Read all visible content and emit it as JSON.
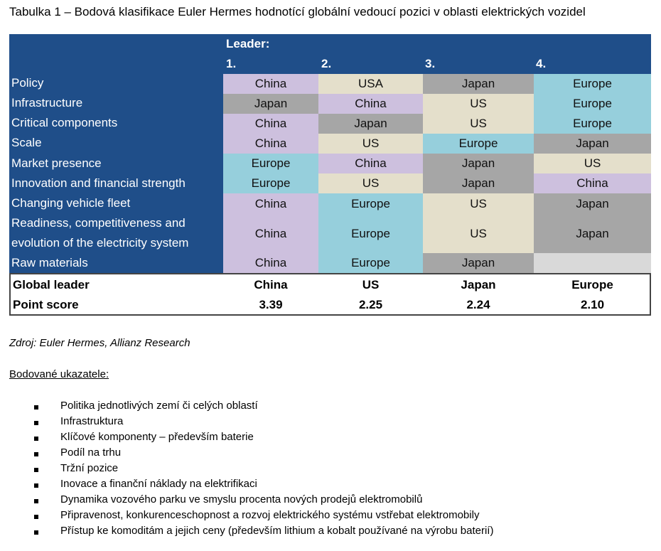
{
  "title": "Tabulka 1 – Bodová klasifikace Euler Hermes hodnotící globální vedoucí pozici v oblasti elektrických vozidel",
  "table": {
    "leader_label": "Leader:",
    "ranks": [
      "1.",
      "2.",
      "3.",
      "4."
    ],
    "colors": {
      "purple": "#cdc0de",
      "beige": "#e4dfcb",
      "gray": "#a6a6a6",
      "teal": "#96cfdc",
      "header_bg": "#1f4e89"
    },
    "rows": [
      {
        "label": "Policy",
        "cells": [
          "China",
          "USA",
          "Japan",
          "Europe"
        ]
      },
      {
        "label": "Infrastructure",
        "cells": [
          "Japan",
          "China",
          "US",
          "Europe"
        ]
      },
      {
        "label": "Critical components",
        "cells": [
          "China",
          "Japan",
          "US",
          "Europe"
        ]
      },
      {
        "label": "Scale",
        "cells": [
          "China",
          "US",
          "Europe",
          "Japan"
        ]
      },
      {
        "label": "Market presence",
        "cells": [
          "Europe",
          "China",
          "Japan",
          "US"
        ]
      },
      {
        "label": "Innovation and financial strength",
        "cells": [
          "Europe",
          "US",
          "Japan",
          "China"
        ]
      },
      {
        "label": "Changing vehicle fleet",
        "cells": [
          "China",
          "Europe",
          "US",
          "Japan"
        ]
      },
      {
        "label": "Readiness, competitiveness and evolution of the electricity system",
        "cells": [
          "China",
          "Europe",
          "US",
          "Japan"
        ]
      },
      {
        "label": "Raw materials",
        "cells": [
          "China",
          "Europe",
          "Japan",
          ""
        ]
      }
    ],
    "summary": {
      "global_leader_label": "Global leader",
      "global_leader": [
        "China",
        "US",
        "Japan",
        "Europe"
      ],
      "point_score_label": "Point score",
      "point_score": [
        "3.39",
        "2.25",
        "2.24",
        "2.10"
      ]
    }
  },
  "source": "Zdroj: Euler Hermes, Allianz Research",
  "indicators_heading": "Bodované ukazatele:",
  "indicators": [
    "Politika jednotlivých zemí či celých oblastí",
    "Infrastruktura",
    "Klíčové komponenty – především baterie",
    "Podíl na trhu",
    "Tržní pozice",
    "Inovace a finanční náklady na elektrifikaci",
    "Dynamika vozového parku ve smyslu procenta nových prodejů elektromobilů",
    "Připravenost, konkurenceschopnost a rozvoj elektrického systému vstřebat elektromobily",
    "Přístup ke komoditám a jejich ceny (především lithium a kobalt používané na výrobu baterií)"
  ]
}
